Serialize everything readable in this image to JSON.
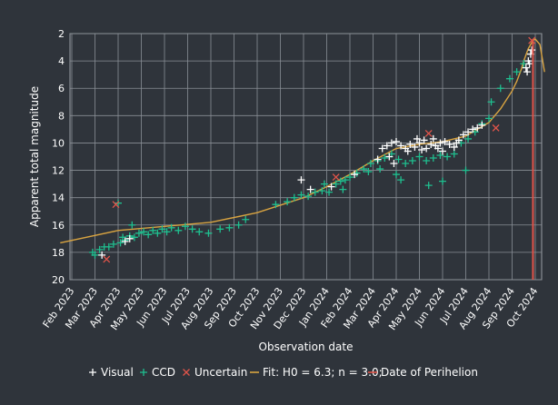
{
  "chart_data": {
    "type": "scatter",
    "xlabel": "Observation date",
    "ylabel": "Apparent total magnitude",
    "ylim": [
      20,
      2
    ],
    "y_inverted": true,
    "y_ticks": [
      "2",
      "4",
      "6",
      "8",
      "10",
      "12",
      "14",
      "16",
      "18",
      "20"
    ],
    "x_ticks": [
      "Feb 2023",
      "Mar 2023",
      "Apr 2023",
      "May 2023",
      "Jun 2023",
      "Jul 2023",
      "Aug 2023",
      "Sep 2023",
      "Oct 2023",
      "Nov 2023",
      "Dec 2023",
      "Jan 2024",
      "Feb 2024",
      "Mar 2024",
      "Apr 2024",
      "May 2024",
      "Jun 2024",
      "Jul 2024",
      "Aug 2024",
      "Sep 2024",
      "Oct 2024"
    ],
    "grid": true,
    "legend_position": "bottom",
    "legend": [
      {
        "label": "Visual",
        "marker": "plus",
        "color": "#ffffff"
      },
      {
        "label": "CCD",
        "marker": "plus",
        "color": "#1fbf8f"
      },
      {
        "label": "Uncertain",
        "marker": "x",
        "color": "#e0544a"
      },
      {
        "label": "Fit: H0 = 6.3; n = 3.0;",
        "marker": "line",
        "color": "#d9a441"
      },
      {
        "label": "Date of Perihelion",
        "marker": "line",
        "color": "#e0544a"
      }
    ],
    "fit": {
      "x": [
        -0.5,
        2,
        4,
        6,
        8,
        10,
        11,
        12,
        13,
        14,
        15,
        16,
        17,
        18,
        18.5,
        19,
        19.2,
        19.4,
        19.5,
        19.7,
        19.9,
        20.0,
        20.2,
        20.4
      ],
      "y": [
        17.3,
        16.4,
        16.1,
        15.8,
        15.1,
        14.0,
        13.2,
        12.3,
        11.3,
        10.4,
        10.1,
        9.9,
        9.5,
        8.5,
        7.5,
        6.2,
        5.5,
        4.6,
        4.0,
        3.1,
        2.5,
        2.4,
        2.8,
        4.8
      ]
    },
    "perihelion_x": 19.9,
    "series": [
      {
        "name": "Visual",
        "marker": "plus",
        "color": "#ffffff",
        "points": [
          [
            1.3,
            18.2
          ],
          [
            2.3,
            17.2
          ],
          [
            2.5,
            17.0
          ],
          [
            9.9,
            12.7
          ],
          [
            10.3,
            13.4
          ],
          [
            11.2,
            13.2
          ],
          [
            12.2,
            12.3
          ],
          [
            13.2,
            11.2
          ],
          [
            13.4,
            10.4
          ],
          [
            13.6,
            10.2
          ],
          [
            13.8,
            10.0
          ],
          [
            14.0,
            9.9
          ],
          [
            14.2,
            10.2
          ],
          [
            14.4,
            10.4
          ],
          [
            14.6,
            10.1
          ],
          [
            14.8,
            10.3
          ],
          [
            15.0,
            10.0
          ],
          [
            15.2,
            9.8
          ],
          [
            15.3,
            10.4
          ],
          [
            15.5,
            10.1
          ],
          [
            15.7,
            10.2
          ],
          [
            15.9,
            10.0
          ],
          [
            16.1,
            9.9
          ],
          [
            16.3,
            10.1
          ],
          [
            16.5,
            10.3
          ],
          [
            16.7,
            9.8
          ],
          [
            16.9,
            9.4
          ],
          [
            17.1,
            9.2
          ],
          [
            17.3,
            9.0
          ],
          [
            17.5,
            8.9
          ],
          [
            17.7,
            8.7
          ],
          [
            14.5,
            10.6
          ],
          [
            13.7,
            11.0
          ],
          [
            14.9,
            9.7
          ],
          [
            15.6,
            9.7
          ],
          [
            16.0,
            10.6
          ],
          [
            16.6,
            10.0
          ],
          [
            19.6,
            4.5
          ],
          [
            19.7,
            4.0
          ],
          [
            19.8,
            3.5
          ],
          [
            19.85,
            3.2
          ],
          [
            19.75,
            4.2
          ],
          [
            19.65,
            4.8
          ],
          [
            13.9,
            11.5
          ],
          [
            15.1,
            10.5
          ],
          [
            15.8,
            10.4
          ]
        ]
      },
      {
        "name": "CCD",
        "marker": "plus",
        "color": "#1fbf8f",
        "points": [
          [
            0.9,
            18.0
          ],
          [
            1.0,
            18.2
          ],
          [
            1.2,
            17.8
          ],
          [
            1.4,
            17.6
          ],
          [
            1.6,
            17.6
          ],
          [
            1.8,
            17.4
          ],
          [
            2.1,
            17.3
          ],
          [
            2.2,
            16.9
          ],
          [
            2.3,
            17.1
          ],
          [
            2.5,
            16.8
          ],
          [
            2.7,
            16.9
          ],
          [
            2.9,
            16.6
          ],
          [
            3.1,
            16.5
          ],
          [
            3.3,
            16.7
          ],
          [
            3.5,
            16.4
          ],
          [
            3.7,
            16.6
          ],
          [
            3.9,
            16.3
          ],
          [
            4.1,
            16.5
          ],
          [
            4.3,
            16.2
          ],
          [
            4.6,
            16.4
          ],
          [
            4.9,
            16.1
          ],
          [
            5.2,
            16.3
          ],
          [
            5.5,
            16.5
          ],
          [
            5.9,
            16.6
          ],
          [
            6.4,
            16.3
          ],
          [
            6.8,
            16.2
          ],
          [
            7.2,
            16.0
          ],
          [
            7.5,
            15.6
          ],
          [
            2.0,
            14.4
          ],
          [
            2.6,
            16.0
          ],
          [
            8.8,
            14.5
          ],
          [
            9.3,
            14.3
          ],
          [
            9.6,
            14.0
          ],
          [
            9.9,
            13.8
          ],
          [
            10.2,
            13.9
          ],
          [
            10.5,
            13.6
          ],
          [
            10.8,
            13.5
          ],
          [
            11.1,
            13.6
          ],
          [
            11.4,
            13.0
          ],
          [
            11.6,
            12.8
          ],
          [
            11.8,
            12.7
          ],
          [
            12.0,
            12.5
          ],
          [
            12.3,
            12.2
          ],
          [
            12.6,
            11.9
          ],
          [
            12.9,
            11.5
          ],
          [
            13.2,
            11.3
          ],
          [
            13.5,
            11.1
          ],
          [
            13.8,
            10.8
          ],
          [
            14.1,
            11.2
          ],
          [
            14.4,
            11.5
          ],
          [
            14.7,
            11.3
          ],
          [
            15.0,
            11.0
          ],
          [
            15.3,
            11.3
          ],
          [
            15.6,
            11.1
          ],
          [
            15.9,
            10.9
          ],
          [
            16.2,
            11.0
          ],
          [
            16.5,
            10.8
          ],
          [
            16.8,
            10.0
          ],
          [
            17.1,
            9.7
          ],
          [
            17.4,
            9.2
          ],
          [
            17.7,
            8.6
          ],
          [
            18.0,
            8.2
          ],
          [
            18.1,
            7.0
          ],
          [
            18.5,
            6.0
          ],
          [
            18.9,
            5.3
          ],
          [
            19.2,
            4.8
          ],
          [
            19.5,
            4.2
          ],
          [
            14.0,
            12.3
          ],
          [
            14.2,
            12.7
          ],
          [
            15.4,
            13.1
          ],
          [
            16.0,
            12.8
          ],
          [
            17.0,
            12.0
          ],
          [
            13.3,
            11.9
          ],
          [
            12.8,
            12.1
          ],
          [
            11.7,
            13.4
          ],
          [
            10.9,
            13.0
          ]
        ]
      },
      {
        "name": "Uncertain",
        "marker": "x",
        "color": "#e0544a",
        "points": [
          [
            1.5,
            18.5
          ],
          [
            1.9,
            14.5
          ],
          [
            11.4,
            12.5
          ],
          [
            15.4,
            9.3
          ],
          [
            18.3,
            8.9
          ],
          [
            19.85,
            2.5
          ]
        ]
      }
    ]
  }
}
